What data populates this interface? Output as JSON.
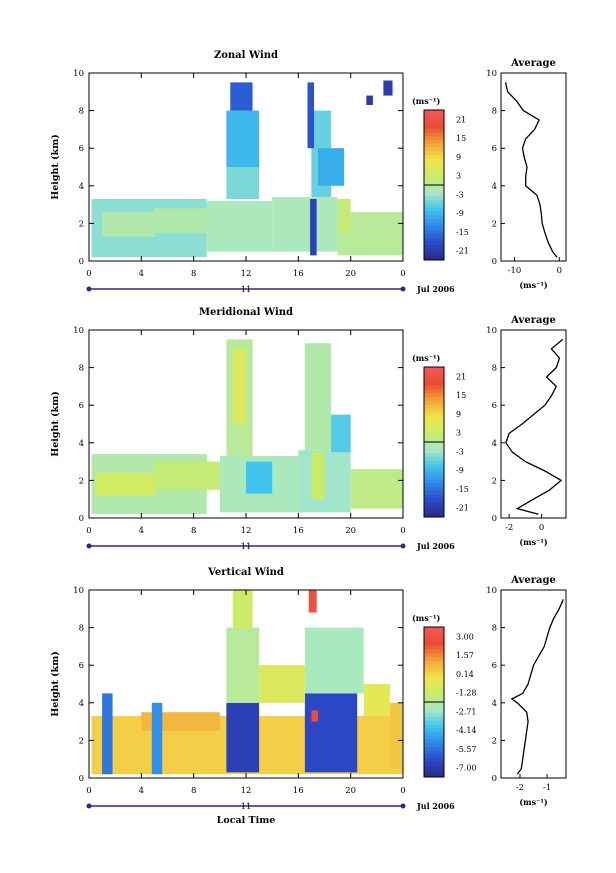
{
  "chart_data": [
    {
      "type": "heatmap",
      "title": "Zonal Wind",
      "ylabel": "Height (km)",
      "ylim": [
        0,
        10
      ],
      "y_ticks": [
        "0",
        "2",
        "4",
        "6",
        "8",
        "10"
      ],
      "xlim": [
        0,
        24
      ],
      "x_ticks": [
        "0",
        "4",
        "8",
        "12",
        "16",
        "20",
        "0"
      ],
      "day_label": "11",
      "date_label": "Jul 2006",
      "colorbar": {
        "unit": "(ms⁻¹)",
        "ticks": [
          "21",
          "15",
          "9",
          "3",
          "-3",
          "-9",
          "-15",
          "-21"
        ],
        "min": -24,
        "max": 24
      },
      "profile": {
        "title": "Average",
        "xlabel": "(ms⁻¹)",
        "x_ticks": [
          "-10",
          "0"
        ],
        "xlim": [
          -13,
          1.5
        ],
        "y_ticks": [
          "0",
          "2",
          "4",
          "6",
          "8",
          "10"
        ],
        "height": [
          0.2,
          0.5,
          1,
          1.5,
          2,
          2.5,
          3,
          3.5,
          4,
          4.5,
          5,
          5.5,
          6,
          6.5,
          7,
          7.5,
          8,
          8.5,
          9,
          9.5
        ],
        "value": [
          -0.5,
          -1.5,
          -2.5,
          -3.2,
          -3.8,
          -4,
          -4.3,
          -5,
          -7.5,
          -7.5,
          -7.2,
          -7.8,
          -8.2,
          -7.5,
          -5.5,
          -4.5,
          -8,
          -9.5,
          -11.5,
          -12
        ]
      },
      "blocks": [
        {
          "t": [
            0.2,
            9
          ],
          "h": [
            0.2,
            3.3
          ],
          "v": -4
        },
        {
          "t": [
            1,
            5
          ],
          "h": [
            1.3,
            2.6
          ],
          "v": -1
        },
        {
          "t": [
            5,
            9
          ],
          "h": [
            1.5,
            2.8
          ],
          "v": -1
        },
        {
          "t": [
            9,
            14
          ],
          "h": [
            0.5,
            3.2
          ],
          "v": -2
        },
        {
          "t": [
            14,
            19
          ],
          "h": [
            0.5,
            3.4
          ],
          "v": -2
        },
        {
          "t": [
            19,
            24
          ],
          "h": [
            0.3,
            2.6
          ],
          "v": 0
        },
        {
          "t": [
            10.5,
            13
          ],
          "h": [
            3.3,
            5
          ],
          "v": -5
        },
        {
          "t": [
            10.5,
            13
          ],
          "h": [
            5,
            8
          ],
          "v": -9
        },
        {
          "t": [
            10.8,
            12.5
          ],
          "h": [
            8,
            9.5
          ],
          "v": -17
        },
        {
          "t": [
            17,
            18.5
          ],
          "h": [
            3.4,
            8
          ],
          "v": -6
        },
        {
          "t": [
            17.5,
            19.5
          ],
          "h": [
            4,
            6
          ],
          "v": -10
        },
        {
          "t": [
            16.9,
            17.4
          ],
          "h": [
            0.3,
            3.3
          ],
          "v": -20
        },
        {
          "t": [
            19,
            20
          ],
          "h": [
            1.5,
            3.3
          ],
          "v": 2
        },
        {
          "t": [
            16.7,
            17.2
          ],
          "h": [
            6,
            9.5
          ],
          "v": -18
        },
        {
          "t": [
            22.5,
            23.2
          ],
          "h": [
            8.8,
            9.6
          ],
          "v": -21
        },
        {
          "t": [
            21.2,
            21.7
          ],
          "h": [
            8.3,
            8.8
          ],
          "v": -21
        }
      ]
    },
    {
      "type": "heatmap",
      "title": "Meridional Wind",
      "ylabel": "Height (km)",
      "ylim": [
        0,
        10
      ],
      "y_ticks": [
        "0",
        "2",
        "4",
        "6",
        "8",
        "10"
      ],
      "xlim": [
        0,
        24
      ],
      "x_ticks": [
        "0",
        "4",
        "8",
        "12",
        "16",
        "20",
        "0"
      ],
      "day_label": "11",
      "date_label": "Jul 2006",
      "colorbar": {
        "unit": "(ms⁻¹)",
        "ticks": [
          "21",
          "15",
          "9",
          "3",
          "-3",
          "-9",
          "-15",
          "-21"
        ],
        "min": -24,
        "max": 24
      },
      "profile": {
        "title": "Average",
        "xlabel": "(ms⁻¹)",
        "x_ticks": [
          "-2",
          "0"
        ],
        "xlim": [
          -2.5,
          1.5
        ],
        "y_ticks": [
          "0",
          "2",
          "4",
          "6",
          "8",
          "10"
        ],
        "height": [
          0.2,
          0.5,
          1,
          1.5,
          2,
          2.5,
          3,
          3.5,
          4,
          4.5,
          5,
          5.5,
          6,
          6.5,
          7,
          7.5,
          8,
          8.5,
          9,
          9.5
        ],
        "value": [
          -0.2,
          -1.5,
          -0.5,
          0.5,
          1.2,
          0.2,
          -1,
          -1.8,
          -2.2,
          -2,
          -1.2,
          -0.5,
          0.2,
          0.6,
          0.9,
          0.3,
          0.9,
          1.1,
          0.6,
          1.3
        ]
      },
      "blocks": [
        {
          "t": [
            0.2,
            9
          ],
          "h": [
            0.2,
            3.4
          ],
          "v": -1
        },
        {
          "t": [
            0.5,
            5
          ],
          "h": [
            1.2,
            2.4
          ],
          "v": 4
        },
        {
          "t": [
            5,
            10
          ],
          "h": [
            1.5,
            3
          ],
          "v": 2
        },
        {
          "t": [
            10,
            16
          ],
          "h": [
            0.3,
            3.3
          ],
          "v": -2
        },
        {
          "t": [
            16,
            20
          ],
          "h": [
            0.3,
            3.6
          ],
          "v": -3
        },
        {
          "t": [
            20,
            24
          ],
          "h": [
            0.5,
            2.6
          ],
          "v": 1
        },
        {
          "t": [
            10.5,
            12.5
          ],
          "h": [
            3.3,
            9.5
          ],
          "v": 0
        },
        {
          "t": [
            11,
            12
          ],
          "h": [
            5,
            9
          ],
          "v": 5
        },
        {
          "t": [
            16.5,
            18.5
          ],
          "h": [
            3.6,
            9.3
          ],
          "v": -1
        },
        {
          "t": [
            18.5,
            20
          ],
          "h": [
            3.5,
            5.5
          ],
          "v": -7
        },
        {
          "t": [
            12,
            14
          ],
          "h": [
            1.3,
            3
          ],
          "v": -8
        },
        {
          "t": [
            17,
            18
          ],
          "h": [
            1,
            3.5
          ],
          "v": 3
        }
      ]
    },
    {
      "type": "heatmap",
      "title": "Vertical Wind",
      "ylabel": "Height (km)",
      "xlabel": "Local Time",
      "ylim": [
        0,
        10
      ],
      "y_ticks": [
        "0",
        "2",
        "4",
        "6",
        "8",
        "10"
      ],
      "xlim": [
        0,
        24
      ],
      "x_ticks": [
        "0",
        "4",
        "8",
        "12",
        "16",
        "20",
        "0"
      ],
      "day_label": "11",
      "date_label": "Jul 2006",
      "colorbar": {
        "unit": "(ms⁻¹)",
        "ticks": [
          "3.00",
          "1.57",
          "0.14",
          "-1.28",
          "-2.71",
          "-4.14",
          "-5.57",
          "-7.00"
        ],
        "min": -7.7,
        "max": 3.7
      },
      "profile": {
        "title": "Average",
        "xlabel": "(ms⁻¹)",
        "x_ticks": [
          "-2",
          "-1"
        ],
        "xlim": [
          -2.7,
          -0.3
        ],
        "y_ticks": [
          "0",
          "2",
          "4",
          "6",
          "8",
          "10"
        ],
        "height": [
          0.2,
          0.5,
          1,
          1.5,
          2,
          2.5,
          3,
          3.5,
          4,
          4.2,
          4.5,
          5,
          5.5,
          6,
          6.5,
          7,
          7.5,
          8,
          8.5,
          9,
          9.5
        ],
        "value": [
          -2.1,
          -1.95,
          -1.9,
          -1.85,
          -1.8,
          -1.75,
          -1.7,
          -1.75,
          -2.1,
          -2.3,
          -1.9,
          -1.7,
          -1.6,
          -1.5,
          -1.3,
          -1.1,
          -1.0,
          -0.9,
          -0.75,
          -0.55,
          -0.4
        ]
      },
      "blocks": [
        {
          "t": [
            0.2,
            24
          ],
          "h": [
            0.2,
            3.3
          ],
          "v": 0.3
        },
        {
          "t": [
            4,
            10
          ],
          "h": [
            2.5,
            3.5
          ],
          "v": 0.8
        },
        {
          "t": [
            1,
            1.8
          ],
          "h": [
            0.2,
            4.5
          ],
          "v": -5.5
        },
        {
          "t": [
            4.8,
            5.6
          ],
          "h": [
            0.2,
            4
          ],
          "v": -5
        },
        {
          "t": [
            10.5,
            13
          ],
          "h": [
            0.3,
            4
          ],
          "v": -6.8
        },
        {
          "t": [
            10.5,
            13
          ],
          "h": [
            4,
            8
          ],
          "v": -2
        },
        {
          "t": [
            11,
            12.5
          ],
          "h": [
            8,
            10
          ],
          "v": -1.2
        },
        {
          "t": [
            16.5,
            20.5
          ],
          "h": [
            0.3,
            4.5
          ],
          "v": -6.5
        },
        {
          "t": [
            16.5,
            21
          ],
          "h": [
            4.5,
            8
          ],
          "v": -2.5
        },
        {
          "t": [
            16.8,
            17.4
          ],
          "h": [
            8.8,
            10
          ],
          "v": 2.8
        },
        {
          "t": [
            17,
            17.5
          ],
          "h": [
            3,
            3.6
          ],
          "v": 2.5
        },
        {
          "t": [
            13,
            16.5
          ],
          "h": [
            4,
            6
          ],
          "v": -0.8
        },
        {
          "t": [
            21,
            23
          ],
          "h": [
            3.3,
            5
          ],
          "v": -0.5
        },
        {
          "t": [
            23,
            24
          ],
          "h": [
            0.5,
            4
          ],
          "v": 0.5
        }
      ]
    }
  ]
}
